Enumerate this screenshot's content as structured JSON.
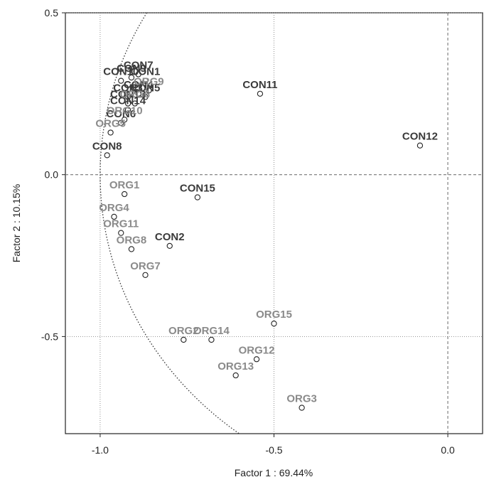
{
  "chart_data": {
    "type": "scatter",
    "xlabel": "Factor 1 : 69.44%",
    "ylabel": "Factor 2 : 10.15%",
    "xlim": [
      -1.1,
      0.1
    ],
    "ylim": [
      -0.8,
      0.5
    ],
    "xticks": [
      -1.0,
      -0.5,
      0.0
    ],
    "xtick_labels": [
      "-1.0",
      "-0.5",
      "0.0"
    ],
    "yticks": [
      0.5,
      0.0,
      -0.5
    ],
    "ytick_labels": [
      "0.5",
      "0.0",
      "-0.5"
    ],
    "grid": true,
    "legend": "none",
    "unit_circle": true,
    "colors": {
      "CON": "#3a3a3a",
      "ORG": "#8a8a8a"
    },
    "points": [
      {
        "label": "CON1",
        "group": "CON",
        "x": -0.87,
        "y": 0.29
      },
      {
        "label": "CON2",
        "group": "CON",
        "x": -0.8,
        "y": -0.22
      },
      {
        "label": "CON3",
        "group": "CON",
        "x": -0.92,
        "y": 0.24
      },
      {
        "label": "CON4",
        "group": "CON",
        "x": -0.89,
        "y": 0.25
      },
      {
        "label": "CON5",
        "group": "CON",
        "x": -0.87,
        "y": 0.24
      },
      {
        "label": "CON6",
        "group": "CON",
        "x": -0.94,
        "y": 0.16
      },
      {
        "label": "CON7",
        "group": "CON",
        "x": -0.89,
        "y": 0.31
      },
      {
        "label": "CON8",
        "group": "CON",
        "x": -0.98,
        "y": 0.06
      },
      {
        "label": "CON9",
        "group": "CON",
        "x": -0.91,
        "y": 0.3
      },
      {
        "label": "CON10",
        "group": "CON",
        "x": -0.94,
        "y": 0.29
      },
      {
        "label": "CON11",
        "group": "CON",
        "x": -0.54,
        "y": 0.25
      },
      {
        "label": "CON12",
        "group": "CON",
        "x": -0.08,
        "y": 0.09
      },
      {
        "label": "CON13",
        "group": "CON",
        "x": -0.92,
        "y": 0.22
      },
      {
        "label": "CON14",
        "group": "CON",
        "x": -0.92,
        "y": 0.2
      },
      {
        "label": "CON15",
        "group": "CON",
        "x": -0.72,
        "y": -0.07
      },
      {
        "label": "ORG1",
        "group": "ORG",
        "x": -0.93,
        "y": -0.06
      },
      {
        "label": "ORG2",
        "group": "ORG",
        "x": -0.76,
        "y": -0.51
      },
      {
        "label": "ORG3",
        "group": "ORG",
        "x": -0.42,
        "y": -0.72
      },
      {
        "label": "ORG4",
        "group": "ORG",
        "x": -0.96,
        "y": -0.13
      },
      {
        "label": "ORG5",
        "group": "ORG",
        "x": -0.97,
        "y": 0.13
      },
      {
        "label": "ORG6",
        "group": "ORG",
        "x": -0.9,
        "y": 0.22
      },
      {
        "label": "ORG7",
        "group": "ORG",
        "x": -0.87,
        "y": -0.31
      },
      {
        "label": "ORG8",
        "group": "ORG",
        "x": -0.91,
        "y": -0.23
      },
      {
        "label": "ORG9",
        "group": "ORG",
        "x": -0.86,
        "y": 0.26
      },
      {
        "label": "ORG10",
        "group": "ORG",
        "x": -0.93,
        "y": 0.17
      },
      {
        "label": "ORG11",
        "group": "ORG",
        "x": -0.94,
        "y": -0.18
      },
      {
        "label": "ORG12",
        "group": "ORG",
        "x": -0.55,
        "y": -0.57
      },
      {
        "label": "ORG13",
        "group": "ORG",
        "x": -0.61,
        "y": -0.62
      },
      {
        "label": "ORG14",
        "group": "ORG",
        "x": -0.68,
        "y": -0.51
      },
      {
        "label": "ORG15",
        "group": "ORG",
        "x": -0.5,
        "y": -0.46
      }
    ]
  }
}
